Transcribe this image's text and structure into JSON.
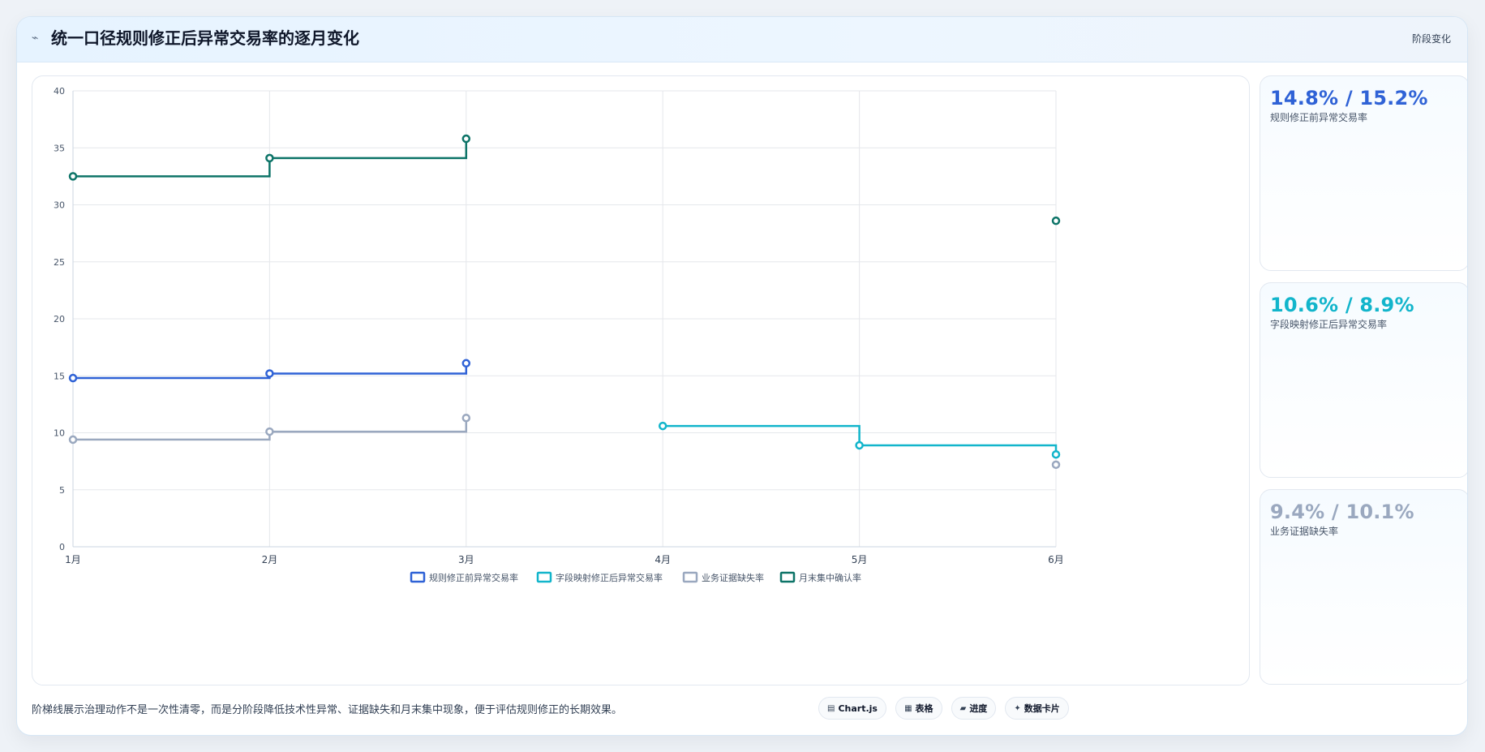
{
  "header": {
    "icon": "line-chart-icon",
    "title": "统一口径规则修正后异常交易率的逐月变化",
    "right_label": "阶段变化"
  },
  "chart_data": {
    "type": "line",
    "stepped": true,
    "categories": [
      "1月",
      "2月",
      "3月",
      "4月",
      "5月",
      "6月"
    ],
    "ylim": [
      0,
      40
    ],
    "yticks": [
      0,
      5,
      10,
      15,
      20,
      25,
      30,
      35,
      40
    ],
    "grid": true,
    "legend_position": "bottom",
    "series": [
      {
        "name": "规则修正前异常交易率",
        "color": "#2f62d6",
        "values": [
          14.8,
          15.2,
          16.1,
          null,
          null,
          null
        ]
      },
      {
        "name": "字段映射修正后异常交易率",
        "color": "#12b5cb",
        "values": [
          null,
          null,
          null,
          10.6,
          8.9,
          8.1
        ]
      },
      {
        "name": "业务证据缺失率",
        "color": "#9aa8bf",
        "values": [
          9.4,
          10.1,
          11.3,
          null,
          null,
          7.2
        ]
      },
      {
        "name": "月末集中确认率",
        "color": "#0d7468",
        "values": [
          32.5,
          34.1,
          35.8,
          null,
          null,
          28.6
        ]
      }
    ]
  },
  "stats": [
    {
      "value": "14.8% / 15.2%",
      "label": "规则修正前异常交易率",
      "color": "#2f62d6"
    },
    {
      "value": "10.6% / 8.9%",
      "label": "字段映射修正后异常交易率",
      "color": "#12b5cb"
    },
    {
      "value": "9.4% / 10.1%",
      "label": "业务证据缺失率",
      "color": "#9aa8bf"
    }
  ],
  "footer": {
    "note": "阶梯线展示治理动作不是一次性清零，而是分阶段降低技术性异常、证据缺失和月末集中现象，便于评估规则修正的长期效果。",
    "pills": [
      {
        "icon": "chart-icon",
        "icon_glyph": "▤",
        "label": "Chart.js"
      },
      {
        "icon": "table-icon",
        "icon_glyph": "▦",
        "label": "表格"
      },
      {
        "icon": "progress-icon",
        "icon_glyph": "▰",
        "label": "进度"
      },
      {
        "icon": "data-card-icon",
        "icon_glyph": "✦",
        "label": "数据卡片"
      }
    ]
  }
}
